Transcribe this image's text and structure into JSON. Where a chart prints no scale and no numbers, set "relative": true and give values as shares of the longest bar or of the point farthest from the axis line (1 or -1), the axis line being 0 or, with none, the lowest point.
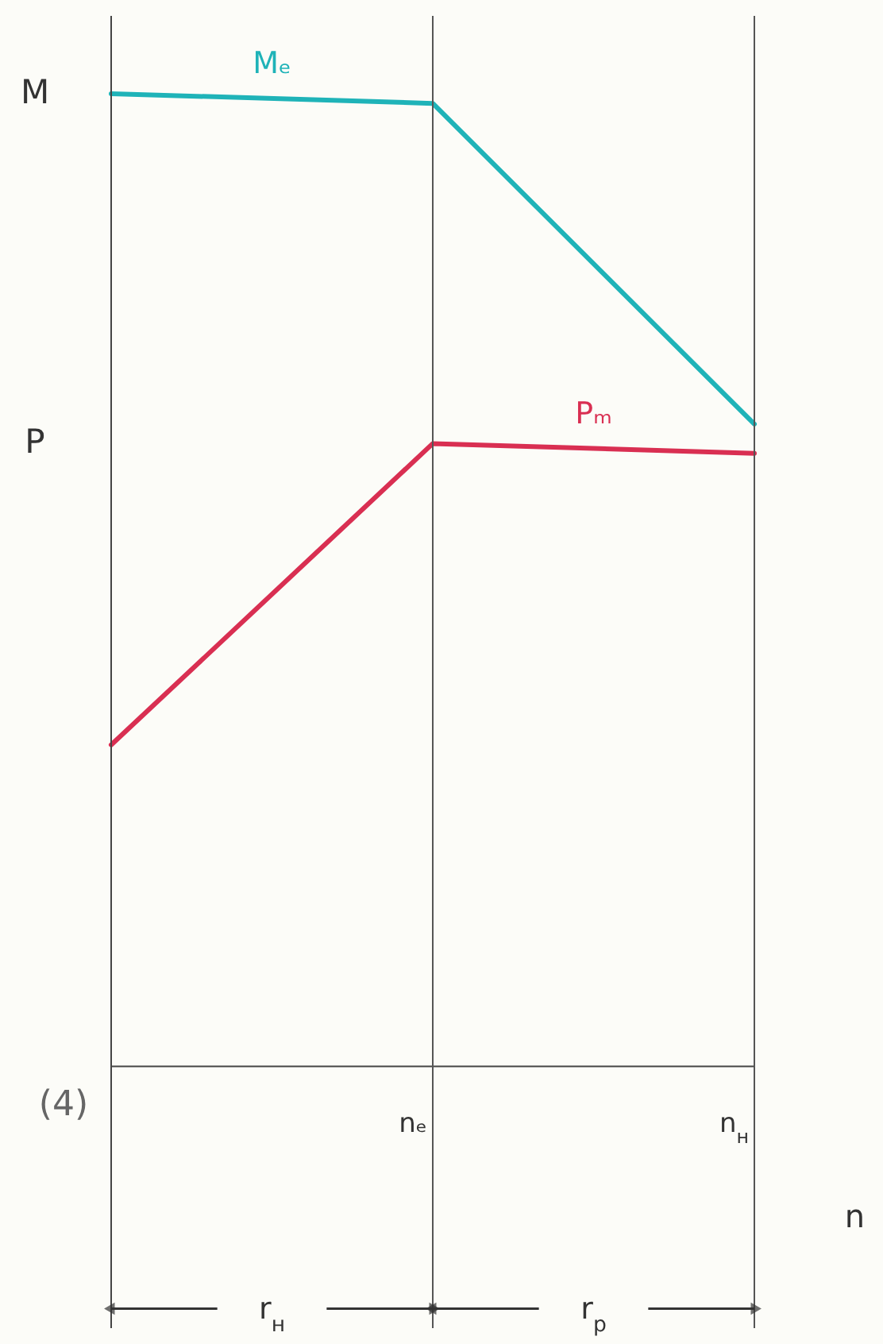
{
  "chart_data": {
    "type": "line",
    "relative": true,
    "xlabel": "n",
    "categories": [
      null,
      "nₑ",
      "n$_{н}$"
    ],
    "series": [
      {
        "name": "Mₑ",
        "color": "#1fb3b8",
        "values": [
          1,
          0.99,
          0.66
        ]
      },
      {
        "name": "Pₘ",
        "color": "#d92f52",
        "values": [
          0.33,
          0.64,
          0.63
        ]
      }
    ],
    "annotations": [
      "M",
      "P",
      "(4)",
      "r$_{н}$",
      "r$_{р}$"
    ],
    "ref_lines": [
      {
        "axis": "x",
        "value": "nₑ"
      },
      {
        "axis": "x",
        "value": "n$_{н}$"
      }
    ],
    "marker": "none",
    "line_style": "solid"
  }
}
